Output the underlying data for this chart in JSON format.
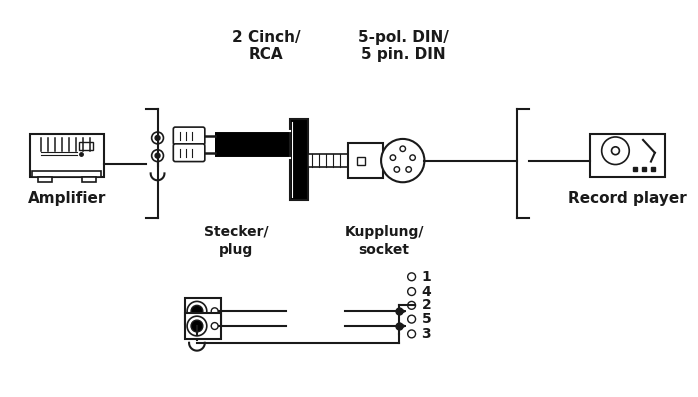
{
  "bg_color": "#ffffff",
  "line_color": "#1a1a1a",
  "title_label1": "2 Cinch/",
  "title_label2": "RCA",
  "title_label3": "5-pol. DIN/",
  "title_label4": "5 pin. DIN",
  "label_stecker": "Stecker/\nplug",
  "label_kupplung": "Kupplung/\nsocket",
  "label_amplifier": "Amplifier",
  "label_record": "Record player"
}
